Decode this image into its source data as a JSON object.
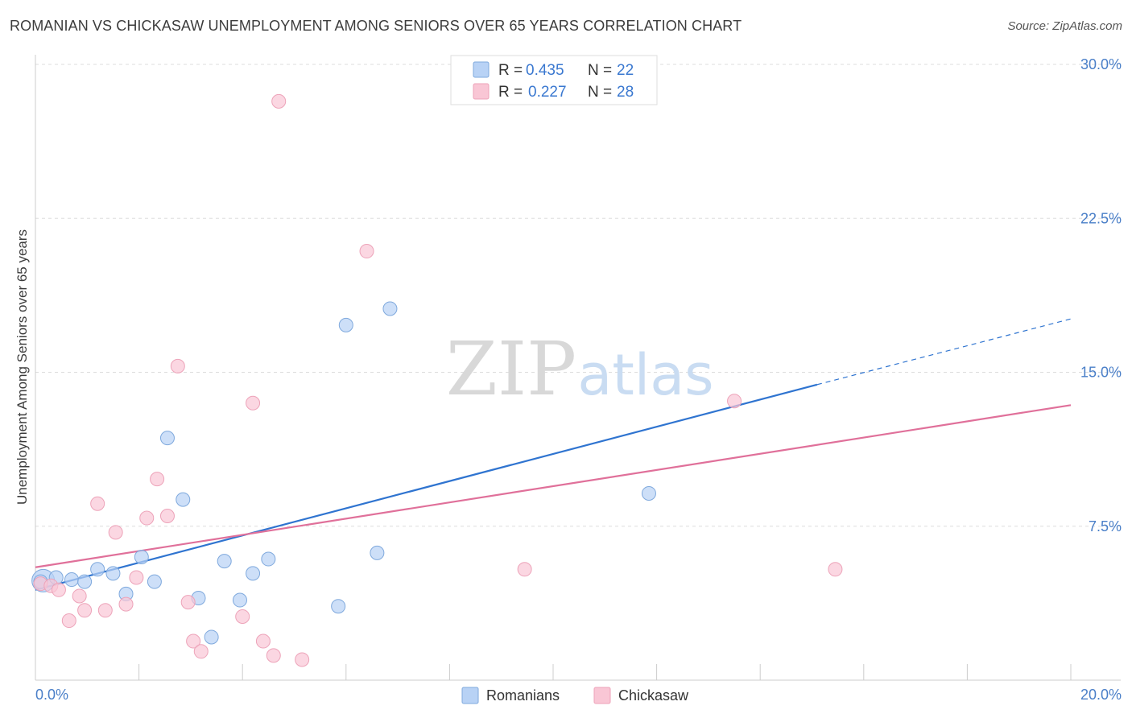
{
  "title": "ROMANIAN VS CHICKASAW UNEMPLOYMENT AMONG SENIORS OVER 65 YEARS CORRELATION CHART",
  "source": "Source: ZipAtlas.com",
  "watermark": {
    "zip": "ZIP",
    "atlas": "atlas"
  },
  "colors": {
    "romanians_fill": "#b8d2f5",
    "romanians_stroke": "#7fa9dd",
    "romanians_line": "#2f74d0",
    "chickasaw_fill": "#f9c6d5",
    "chickasaw_stroke": "#eda3b9",
    "chickasaw_line": "#e0709a",
    "grid": "#dddddd",
    "tick_label": "#4a7fc8"
  },
  "legend": {
    "r_label": "R =",
    "n_label": "N =",
    "romanians": {
      "r": "0.435",
      "n": "22"
    },
    "chickasaw": {
      "r": "0.227",
      "n": "28"
    }
  },
  "chart_data": {
    "type": "scatter",
    "title": "ROMANIAN VS CHICKASAW UNEMPLOYMENT AMONG SENIORS OVER 65 YEARS CORRELATION CHART",
    "xlabel": "",
    "ylabel": "Unemployment Among Seniors over 65 years",
    "xlim": [
      0,
      20
    ],
    "ylim": [
      0,
      30
    ],
    "x_tick_labels": [
      "0.0%",
      "20.0%"
    ],
    "y_ticks": [
      7.5,
      15.0,
      22.5,
      30.0
    ],
    "y_tick_labels": [
      "7.5%",
      "15.0%",
      "22.5%",
      "30.0%"
    ],
    "grid": true,
    "legend_position": "top-center",
    "series": [
      {
        "name": "Romanians",
        "points": [
          [
            0.1,
            4.8
          ],
          [
            0.4,
            5.0
          ],
          [
            0.7,
            4.9
          ],
          [
            0.95,
            4.8
          ],
          [
            1.2,
            5.4
          ],
          [
            1.5,
            5.2
          ],
          [
            1.75,
            4.2
          ],
          [
            2.05,
            6.0
          ],
          [
            2.3,
            4.8
          ],
          [
            2.55,
            11.8
          ],
          [
            2.85,
            8.8
          ],
          [
            3.15,
            4.0
          ],
          [
            3.4,
            2.1
          ],
          [
            3.65,
            5.8
          ],
          [
            3.95,
            3.9
          ],
          [
            4.2,
            5.2
          ],
          [
            4.5,
            5.9
          ],
          [
            5.85,
            3.6
          ],
          [
            6.0,
            17.3
          ],
          [
            6.6,
            6.2
          ],
          [
            6.85,
            18.1
          ],
          [
            11.85,
            9.1
          ]
        ],
        "trend": {
          "start": [
            0,
            4.4
          ],
          "end": [
            15.1,
            14.4
          ],
          "dashed_end": [
            20.0,
            17.6
          ]
        }
      },
      {
        "name": "Chickasaw",
        "points": [
          [
            0.1,
            4.7
          ],
          [
            0.3,
            4.6
          ],
          [
            0.45,
            4.4
          ],
          [
            0.65,
            2.9
          ],
          [
            0.85,
            4.1
          ],
          [
            0.95,
            3.4
          ],
          [
            1.2,
            8.6
          ],
          [
            1.35,
            3.4
          ],
          [
            1.55,
            7.2
          ],
          [
            1.75,
            3.7
          ],
          [
            1.95,
            5.0
          ],
          [
            2.15,
            7.9
          ],
          [
            2.35,
            9.8
          ],
          [
            2.55,
            8.0
          ],
          [
            2.75,
            15.3
          ],
          [
            2.95,
            3.8
          ],
          [
            3.05,
            1.9
          ],
          [
            3.2,
            1.4
          ],
          [
            4.0,
            3.1
          ],
          [
            4.2,
            13.5
          ],
          [
            4.4,
            1.9
          ],
          [
            4.6,
            1.2
          ],
          [
            4.7,
            28.2
          ],
          [
            5.15,
            1.0
          ],
          [
            6.4,
            20.9
          ],
          [
            9.45,
            5.4
          ],
          [
            13.5,
            13.6
          ],
          [
            15.45,
            5.4
          ]
        ],
        "trend": {
          "start": [
            0,
            5.5
          ],
          "end": [
            20.0,
            13.4
          ]
        }
      }
    ]
  }
}
